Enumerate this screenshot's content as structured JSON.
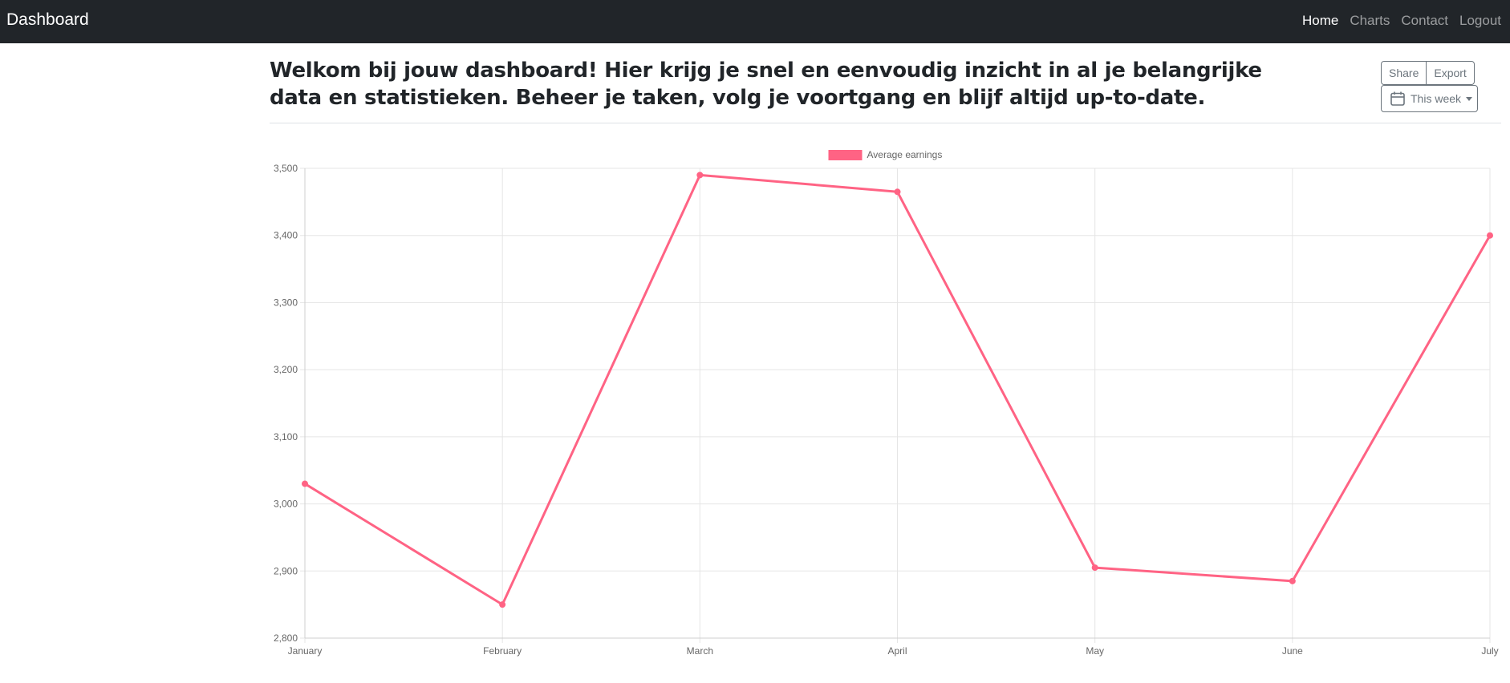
{
  "navbar": {
    "brand": "Dashboard",
    "links": [
      {
        "label": "Home",
        "active": true
      },
      {
        "label": "Charts",
        "active": false
      },
      {
        "label": "Contact",
        "active": false
      },
      {
        "label": "Logout",
        "active": false
      }
    ]
  },
  "main": {
    "heading": "Welkom bij jouw dashboard! Hier krijg je snel en eenvoudig inzicht in al je belangrijke data en statistieken. Beheer je taken, volg je voortgang en blijf altijd up-to-date.",
    "toolbar": {
      "share_label": "Share",
      "export_label": "Export",
      "period_label": "This week",
      "period_icon": "calendar-icon"
    }
  },
  "colors": {
    "navbar_bg": "#212529",
    "series_line": "#ff6384",
    "grid": "#e5e5e5"
  },
  "chart_data": {
    "type": "line",
    "categories": [
      "January",
      "February",
      "March",
      "April",
      "May",
      "June",
      "July"
    ],
    "series": [
      {
        "name": "Average earnings",
        "values": [
          3030,
          2850,
          3490,
          3465,
          2905,
          2885,
          3400
        ]
      }
    ],
    "y_ticks": [
      "3,500",
      "3,400",
      "3,300",
      "3,200",
      "3,100",
      "3,000",
      "2,900",
      "2,800"
    ],
    "ylim": [
      2800,
      3500
    ],
    "legend_position": "top",
    "grid": true
  }
}
